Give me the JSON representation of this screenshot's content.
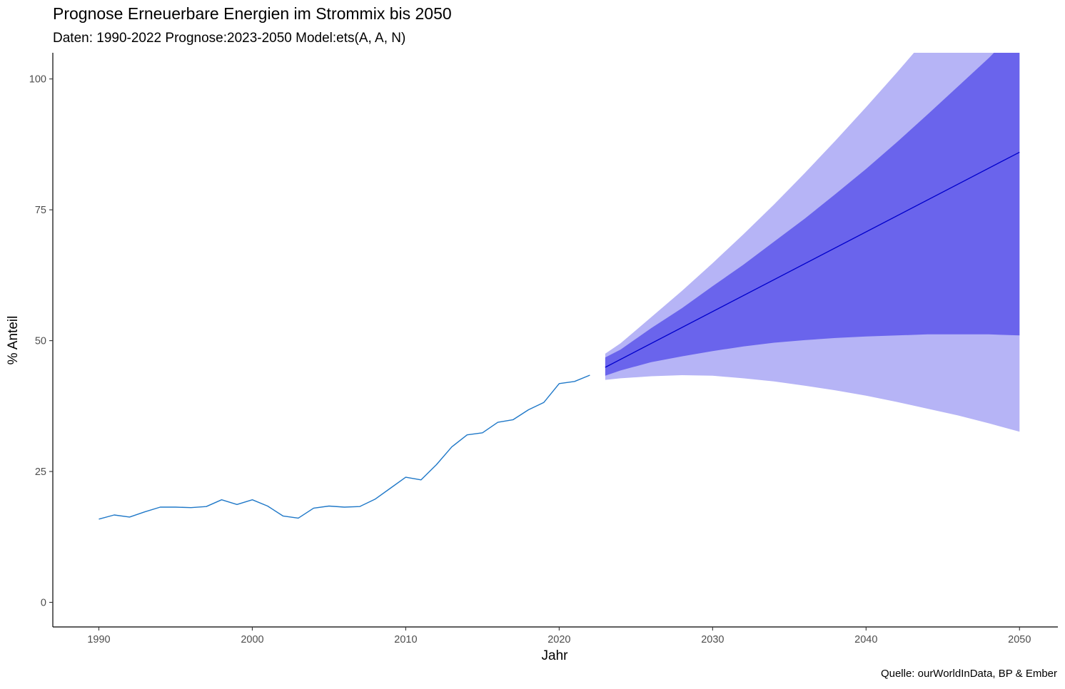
{
  "chart_data": {
    "type": "line",
    "title": "Prognose Erneuerbare Energien im Strommix bis 2050",
    "subtitle": "Daten: 1990-2022 Prognose:2023-2050 Model:ets(A, A, N)",
    "caption": "Quelle: ourWorldInData, BP & Ember",
    "xlabel": "Jahr",
    "ylabel": "% Anteil",
    "xlim": [
      1987,
      2052.5
    ],
    "ylim": [
      -4.7,
      105
    ],
    "x_ticks": [
      1990,
      2000,
      2010,
      2020,
      2030,
      2040,
      2050
    ],
    "y_ticks": [
      0,
      25,
      50,
      75,
      100
    ],
    "grid": false,
    "colors": {
      "history": "#1f78c8",
      "forecast": "#0000cc",
      "band80": "#6a64ec",
      "band95": "#b6b4f6"
    },
    "history": {
      "x": [
        1990,
        1991,
        1992,
        1993,
        1994,
        1995,
        1996,
        1997,
        1998,
        1999,
        2000,
        2001,
        2002,
        2003,
        2004,
        2005,
        2006,
        2007,
        2008,
        2009,
        2010,
        2011,
        2012,
        2013,
        2014,
        2015,
        2016,
        2017,
        2018,
        2019,
        2020,
        2021,
        2022
      ],
      "y": [
        15.9,
        16.7,
        16.3,
        17.3,
        18.2,
        18.2,
        18.1,
        18.3,
        19.6,
        18.7,
        19.6,
        18.4,
        16.5,
        16.1,
        18.0,
        18.4,
        18.2,
        18.3,
        19.7,
        21.8,
        23.9,
        23.4,
        26.3,
        29.7,
        32.0,
        32.4,
        34.4,
        34.9,
        36.8,
        38.2,
        41.8,
        42.2,
        43.4
      ]
    },
    "forecast": {
      "x": [
        2023,
        2050
      ],
      "y": [
        44.9,
        86.0
      ]
    },
    "band80": {
      "x": [
        2023,
        2024,
        2026,
        2028,
        2030,
        2032,
        2034,
        2036,
        2038,
        2040,
        2042,
        2044,
        2046,
        2048,
        2050
      ],
      "lower": [
        43.3,
        44.3,
        45.9,
        47.0,
        48.0,
        48.9,
        49.6,
        50.1,
        50.5,
        50.8,
        51.0,
        51.2,
        51.2,
        51.2,
        51.0
      ],
      "upper": [
        46.8,
        48.3,
        52.4,
        56.2,
        60.4,
        64.5,
        68.9,
        73.3,
        78.0,
        82.8,
        87.9,
        93.2,
        98.6,
        104.0,
        110.0
      ]
    },
    "band95": {
      "x": [
        2023,
        2024,
        2026,
        2028,
        2030,
        2032,
        2034,
        2036,
        2038,
        2040,
        2042,
        2044,
        2046,
        2048,
        2050
      ],
      "lower": [
        42.5,
        42.8,
        43.2,
        43.4,
        43.3,
        42.8,
        42.2,
        41.4,
        40.5,
        39.5,
        38.3,
        37.0,
        35.7,
        34.2,
        32.6
      ],
      "upper": [
        47.5,
        49.5,
        54.5,
        59.5,
        64.8,
        70.3,
        76.0,
        82.0,
        88.2,
        94.6,
        101.2,
        108.0,
        115.0,
        122.0,
        129.0
      ]
    }
  }
}
